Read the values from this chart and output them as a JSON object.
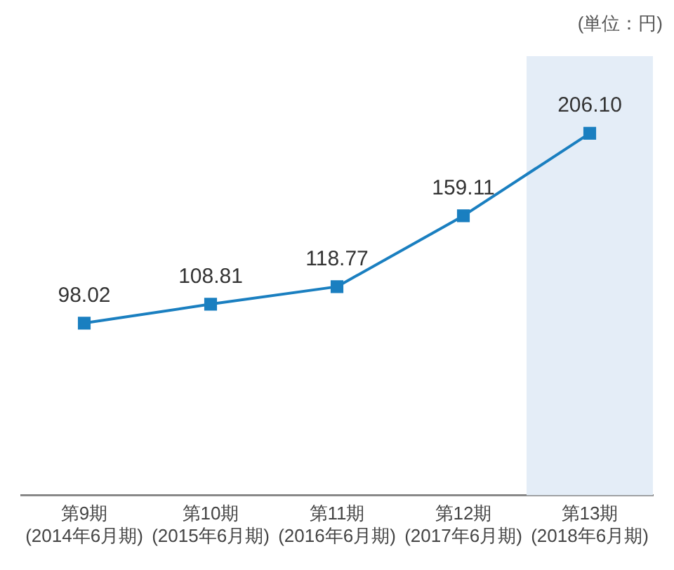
{
  "chart_data": {
    "type": "line",
    "annotations": [
      "(単位：円)"
    ],
    "categories": [
      "第9期\n(2014年6月期)",
      "第10期\n(2015年6月期)",
      "第11期\n(2016年6月期)",
      "第12期\n(2017年6月期)",
      "第13期\n(2018年6月期)"
    ],
    "series": [
      {
        "color": "#1a7fc0",
        "values": [
          98.02,
          108.81,
          118.77,
          159.11,
          206.1
        ],
        "value_labels": [
          "98.02",
          "108.81",
          "118.77",
          "159.11",
          "206.10"
        ]
      }
    ],
    "marker": "square",
    "line_style": "solid",
    "grid": false,
    "legend": false,
    "bands": [
      {
        "axis": "x",
        "from": "第13期\n(2018年6月期)",
        "to": "第13期\n(2018年6月期)",
        "color": "#e4edf7"
      }
    ]
  }
}
